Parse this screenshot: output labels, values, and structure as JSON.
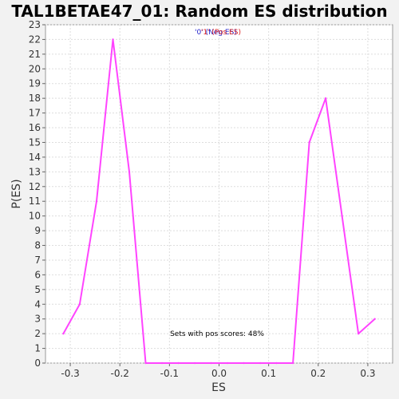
{
  "chart_data": {
    "type": "line",
    "title": "TAL1BETAE47_01: Random ES distribution",
    "xlabel": "ES",
    "ylabel": "P(ES)",
    "xlim": [
      -0.35,
      0.35
    ],
    "ylim": [
      0,
      23
    ],
    "xticks": [
      "-0.3",
      "-0.2",
      "-0.1",
      "0.0",
      "0.1",
      "0.2",
      "0.3"
    ],
    "xtick_values": [
      -0.3,
      -0.2,
      -0.1,
      0.0,
      0.1,
      0.2,
      0.3
    ],
    "yticks": [
      0,
      1,
      2,
      3,
      4,
      5,
      6,
      7,
      8,
      9,
      10,
      11,
      12,
      13,
      14,
      15,
      16,
      17,
      18,
      19,
      20,
      21,
      22,
      23
    ],
    "grid": true,
    "legend": [
      {
        "label": "'0' (Neg ES)",
        "color": "#2222cc"
      },
      {
        "label": "'1' (Pos ES)",
        "color": "#dd2222"
      }
    ],
    "legend_placement": "top-center",
    "annotation": "Sets with pos scores: 48%",
    "series": [
      {
        "color": "#ff44ff",
        "x": [
          -0.314,
          -0.281,
          -0.247,
          -0.214,
          -0.181,
          -0.148,
          -0.115,
          -0.082,
          -0.049,
          -0.016,
          0.017,
          0.05,
          0.083,
          0.116,
          0.149,
          0.182,
          0.215,
          0.248,
          0.281,
          0.314
        ],
        "y": [
          2,
          4,
          11,
          22,
          13,
          0,
          0,
          0,
          0,
          0,
          0,
          0,
          0,
          0,
          0,
          15,
          18,
          10,
          2,
          3
        ]
      }
    ],
    "colors": {
      "background": "#f2f2f2",
      "plot_background": "#ffffff",
      "grid": "#dddddd",
      "line": "#ff44ff"
    }
  }
}
